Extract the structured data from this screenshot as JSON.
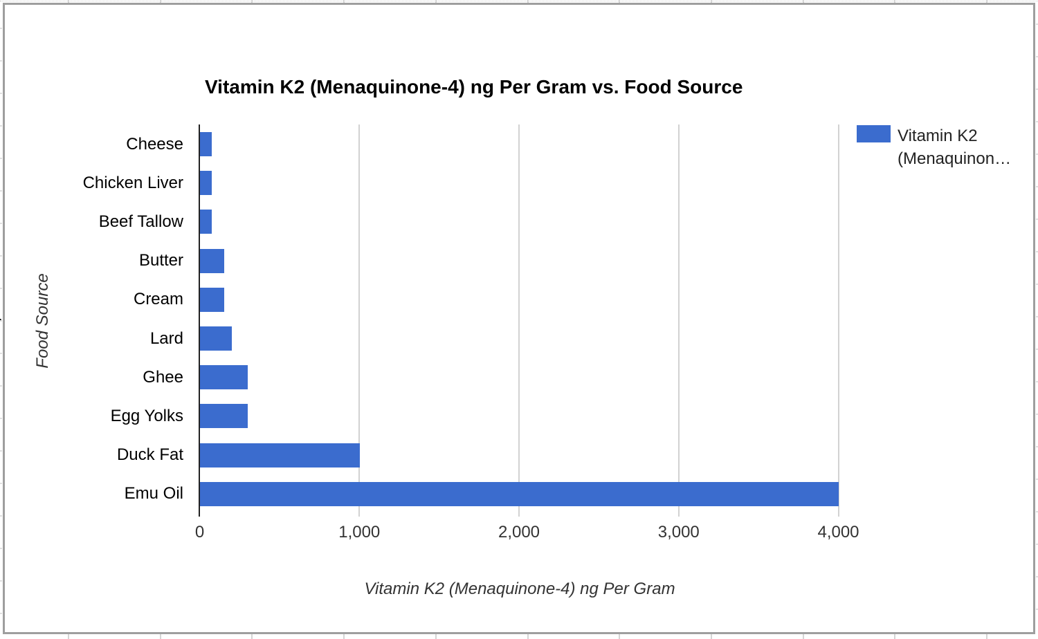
{
  "chart_data": {
    "type": "bar",
    "orientation": "horizontal",
    "title": "Vitamin K2 (Menaquinone-4) ng Per Gram vs. Food Source",
    "xlabel": "Vitamin K2 (Menaquinone-4) ng Per Gram",
    "ylabel": "Food Source",
    "categories": [
      "Cheese",
      "Chicken Liver",
      "Beef Tallow",
      "Butter",
      "Cream",
      "Lard",
      "Ghee",
      "Egg Yolks",
      "Duck Fat",
      "Emu Oil"
    ],
    "values": [
      75,
      75,
      75,
      150,
      150,
      200,
      300,
      300,
      1000,
      4000
    ],
    "series": [
      {
        "name": "Vitamin K2 (Menaquinone-4) ng Per Gram",
        "values": [
          75,
          75,
          75,
          150,
          150,
          200,
          300,
          300,
          1000,
          4000
        ]
      }
    ],
    "xlim": [
      0,
      4000
    ],
    "x_ticks": [
      0,
      1000,
      2000,
      3000,
      4000
    ],
    "x_tick_labels": [
      "0",
      "1,000",
      "2,000",
      "3,000",
      "4,000"
    ],
    "grid": true,
    "legend_position": "right",
    "bar_color": "#3b6cce"
  },
  "legend": {
    "lines": [
      "Vitamin K2",
      "(Menaquinon…"
    ]
  },
  "background": {
    "partial_text": "r"
  },
  "colors": {
    "bar": "#3b6cce",
    "gridline": "#d2d2d2",
    "axis_line": "#222222",
    "frame_border": "#9e9e9e"
  }
}
